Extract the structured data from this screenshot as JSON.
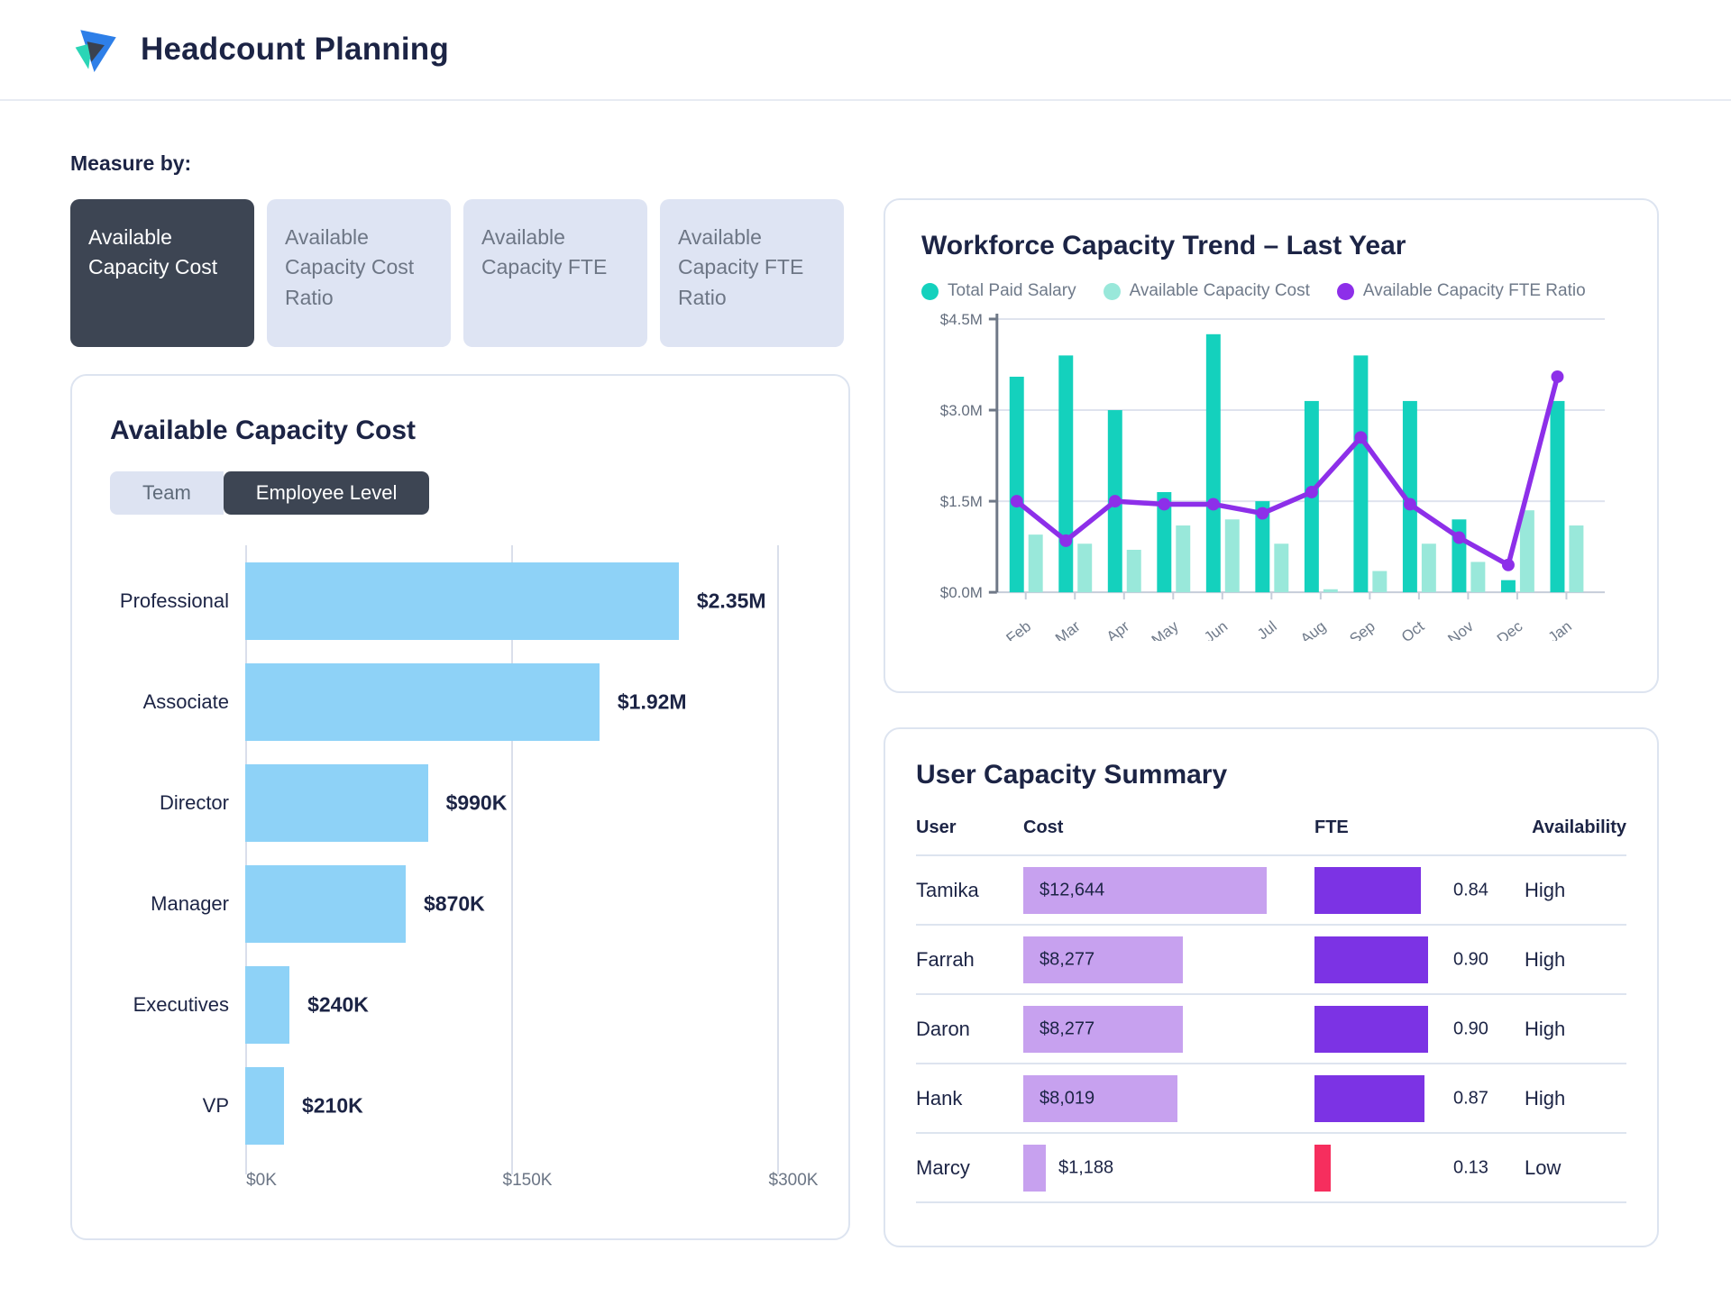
{
  "header": {
    "title": "Headcount Planning"
  },
  "measure_by": {
    "label": "Measure by:",
    "options": [
      {
        "label": "Available Capacity Cost",
        "active": true
      },
      {
        "label": "Available Capacity Cost Ratio",
        "active": false
      },
      {
        "label": "Available Capacity FTE",
        "active": false
      },
      {
        "label": "Available Capacity FTE Ratio",
        "active": false
      }
    ]
  },
  "capacity_cost_card": {
    "title": "Available Capacity Cost",
    "toggle": {
      "options": [
        {
          "label": "Team",
          "active": false
        },
        {
          "label": "Employee Level",
          "active": true
        }
      ]
    }
  },
  "trend_card": {
    "title": "Workforce Capacity Trend – Last Year",
    "legend": [
      {
        "label": "Total Paid Salary",
        "color": "#14d1bd"
      },
      {
        "label": "Available Capacity Cost",
        "color": "#99e8da"
      },
      {
        "label": "Available Capacity FTE Ratio",
        "color": "#8d2fe9"
      }
    ]
  },
  "summary_card": {
    "title": "User Capacity Summary"
  },
  "chart_data": [
    {
      "id": "available-capacity-cost-by-employee-level",
      "type": "bar",
      "orientation": "horizontal",
      "categories": [
        "Professional",
        "Associate",
        "Director",
        "Manager",
        "Executives",
        "VP"
      ],
      "values": [
        2350000,
        1920000,
        990000,
        870000,
        240000,
        210000
      ],
      "value_labels": [
        "$2.35M",
        "$1.92M",
        "$990K",
        "$870K",
        "$240K",
        "$210K"
      ],
      "x_ticks": [
        "$0K",
        "$150K",
        "$300K"
      ],
      "bar_color": "#8ed2f7",
      "grid": true,
      "max_bar_axis_fraction": 0.815
    },
    {
      "id": "workforce-capacity-trend",
      "type": "bar+line",
      "x": [
        "Feb",
        "Mar",
        "Apr",
        "May",
        "Jun",
        "Jul",
        "Aug",
        "Sep",
        "Oct",
        "Nov",
        "Dec",
        "Jan"
      ],
      "series": [
        {
          "name": "Total Paid Salary",
          "type": "bar",
          "color": "#14d1bd",
          "values": [
            3.55,
            3.9,
            3.0,
            1.65,
            4.25,
            1.5,
            3.15,
            3.9,
            3.15,
            1.2,
            0.2,
            3.15
          ]
        },
        {
          "name": "Available Capacity Cost",
          "type": "bar",
          "color": "#99e8da",
          "values": [
            0.95,
            0.8,
            0.7,
            1.1,
            1.2,
            0.8,
            0.05,
            0.35,
            0.8,
            0.5,
            1.35,
            1.1
          ]
        },
        {
          "name": "Available Capacity FTE Ratio",
          "type": "line",
          "color": "#8d2fe9",
          "values": [
            1.5,
            0.85,
            1.5,
            1.45,
            1.45,
            1.3,
            1.65,
            2.55,
            1.45,
            0.9,
            0.45,
            3.55
          ]
        }
      ],
      "unit": "$M",
      "ylim": [
        0,
        4.5
      ],
      "y_ticks": [
        "$0.0M",
        "$1.5M",
        "$3.0M",
        "$4.5M"
      ],
      "legend_position": "top",
      "grid": true
    },
    {
      "id": "user-capacity-summary",
      "type": "table",
      "columns": [
        "User",
        "Cost",
        "FTE",
        "Availability"
      ],
      "cost_bar_color": "#c7a1ef",
      "rows": [
        {
          "user": "Tamika",
          "cost": 12644,
          "cost_display": "$12,644",
          "fte": 0.84,
          "fte_display": "0.84",
          "fte_color": "#7c33e4",
          "availability": "High"
        },
        {
          "user": "Farrah",
          "cost": 8277,
          "cost_display": "$8,277",
          "fte": 0.9,
          "fte_display": "0.90",
          "fte_color": "#7c33e4",
          "availability": "High"
        },
        {
          "user": "Daron",
          "cost": 8277,
          "cost_display": "$8,277",
          "fte": 0.9,
          "fte_display": "0.90",
          "fte_color": "#7c33e4",
          "availability": "High"
        },
        {
          "user": "Hank",
          "cost": 8019,
          "cost_display": "$8,019",
          "fte": 0.87,
          "fte_display": "0.87",
          "fte_color": "#7c33e4",
          "availability": "High"
        },
        {
          "user": "Marcy",
          "cost": 1188,
          "cost_display": "$1,188",
          "fte": 0.13,
          "fte_display": "0.13",
          "fte_color": "#f62e5e",
          "availability": "Low"
        }
      ]
    }
  ]
}
